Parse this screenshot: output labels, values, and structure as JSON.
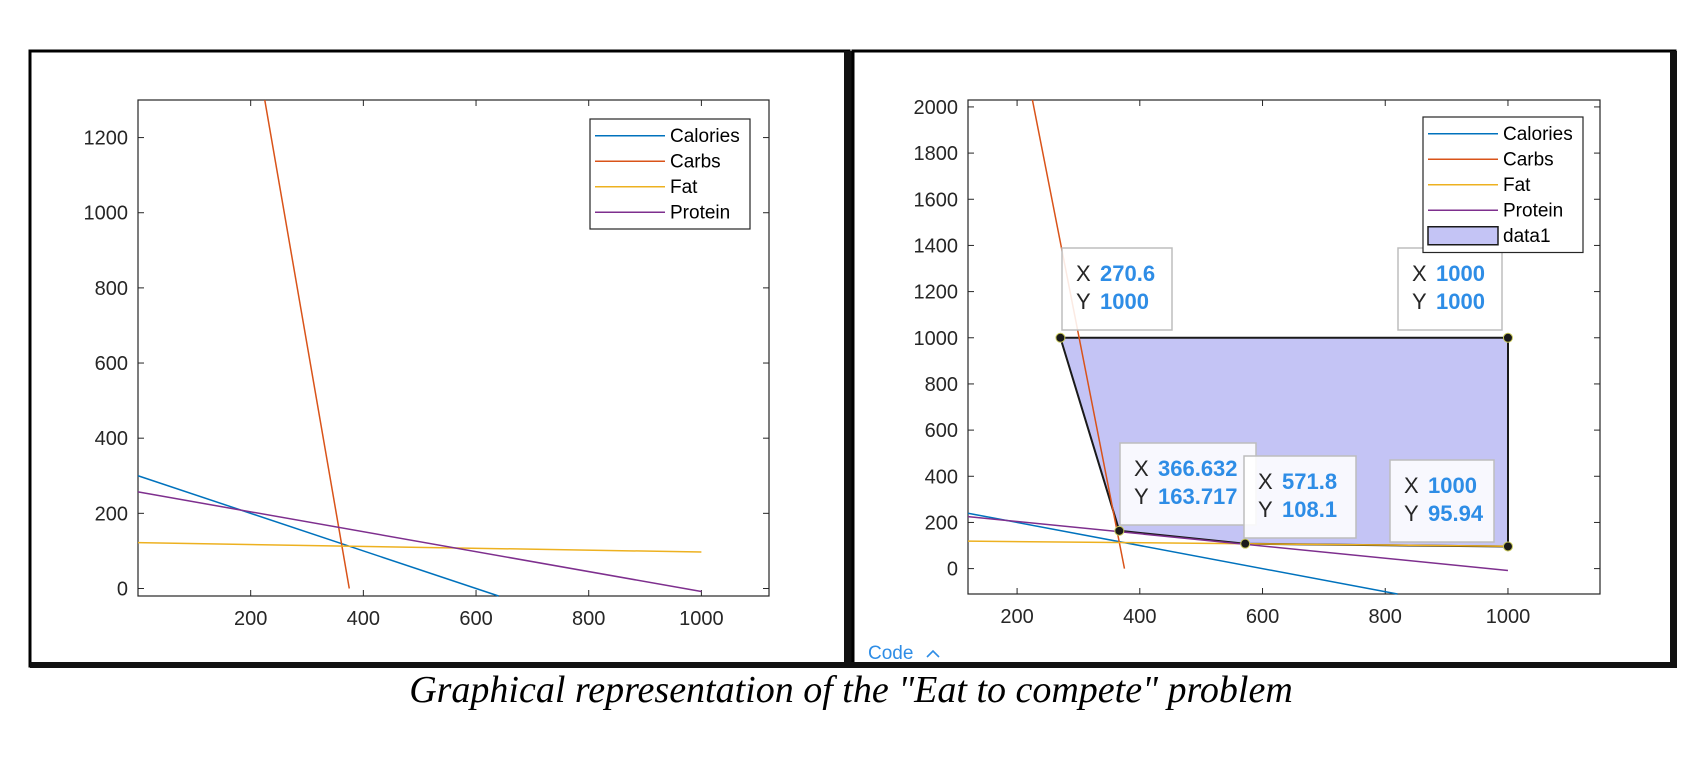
{
  "caption": "Graphical representation of the \"Eat to compete\" problem",
  "code_link": "Code",
  "colors": {
    "Calories": "#0072bd",
    "Carbs": "#d95319",
    "Fat": "#edb120",
    "Protein": "#7e2f8e",
    "region": "#c4c4f5",
    "datatip_value": "#2e8de6"
  },
  "chart_data": [
    {
      "type": "line",
      "xlim": [
        0,
        1120
      ],
      "ylim": [
        -20,
        1300
      ],
      "xticks": [
        200,
        400,
        600,
        800,
        1000
      ],
      "yticks": [
        0,
        200,
        400,
        600,
        800,
        1000,
        1200
      ],
      "grid": false,
      "legend_position": "top-right",
      "series": [
        {
          "name": "Calories",
          "x": [
            0,
            1000
          ],
          "y": [
            300,
            -200
          ]
        },
        {
          "name": "Carbs",
          "x": [
            225,
            375
          ],
          "y": [
            1300,
            0
          ]
        },
        {
          "name": "Fat",
          "x": [
            0,
            1000
          ],
          "y": [
            122,
            97
          ]
        },
        {
          "name": "Protein",
          "x": [
            0,
            1000
          ],
          "y": [
            257,
            -8
          ]
        }
      ]
    },
    {
      "type": "area",
      "xlim": [
        120,
        1150
      ],
      "ylim": [
        -110,
        2030
      ],
      "xticks": [
        200,
        400,
        600,
        800,
        1000
      ],
      "yticks": [
        0,
        200,
        400,
        600,
        800,
        1000,
        1200,
        1400,
        1600,
        1800,
        2000
      ],
      "grid": false,
      "legend_position": "top-right",
      "series": [
        {
          "name": "Calories",
          "x": [
            0,
            1000
          ],
          "y": [
            300,
            -200
          ]
        },
        {
          "name": "Carbs",
          "x": [
            225,
            375
          ],
          "y": [
            2030,
            0
          ]
        },
        {
          "name": "Fat",
          "x": [
            0,
            1000
          ],
          "y": [
            122,
            97
          ]
        },
        {
          "name": "Protein",
          "x": [
            0,
            1000
          ],
          "y": [
            257,
            -8
          ]
        }
      ],
      "region": {
        "name": "data1",
        "x": [
          270.6,
          1000,
          1000,
          571.8,
          366.632
        ],
        "y": [
          1000,
          1000,
          95.94,
          108.1,
          163.717
        ]
      },
      "datatips": [
        {
          "X": "270.6",
          "Y": "1000"
        },
        {
          "X": "1000",
          "Y": "1000"
        },
        {
          "X": "366.632",
          "Y": "163.717"
        },
        {
          "X": "571.8",
          "Y": "108.1"
        },
        {
          "X": "1000",
          "Y": "95.94"
        }
      ]
    }
  ]
}
